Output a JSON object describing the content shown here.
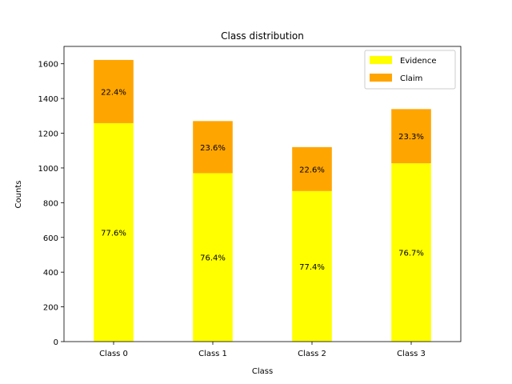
{
  "chart_data": {
    "type": "bar",
    "stacked": true,
    "title": "Class distribution",
    "xlabel": "Class",
    "ylabel": "Counts",
    "categories": [
      "Class 0",
      "Class 1",
      "Class 2",
      "Class 3"
    ],
    "ylim": [
      0,
      1700
    ],
    "yticks": [
      0,
      200,
      400,
      600,
      800,
      1000,
      1200,
      1400,
      1600
    ],
    "legend_position": "top-right",
    "grid": false,
    "series": [
      {
        "name": "Evidence",
        "color": "#ffff00",
        "values": [
          1258,
          970,
          867,
          1027
        ],
        "percent_labels": [
          "77.6%",
          "76.4%",
          "77.4%",
          "76.7%"
        ]
      },
      {
        "name": "Claim",
        "color": "#ffa500",
        "values": [
          364,
          300,
          253,
          312
        ],
        "percent_labels": [
          "22.4%",
          "23.6%",
          "22.6%",
          "23.3%"
        ]
      }
    ]
  }
}
